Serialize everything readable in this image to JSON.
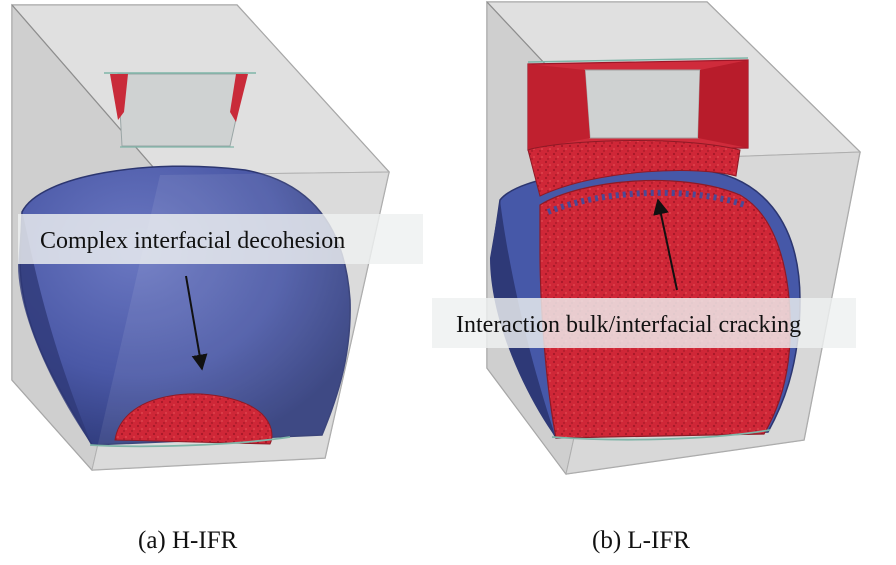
{
  "panels": [
    {
      "id": "a",
      "caption": "(a) H-IFR",
      "annotation": "Complex interfacial decohesion"
    },
    {
      "id": "b",
      "caption": "(b) L-IFR",
      "annotation": "Interaction bulk/interfacial cracking"
    }
  ],
  "colors": {
    "box": "#d9d9d9",
    "box_edge": "#9a9a9a",
    "inclusion": "#4a5aa8",
    "crack": "#d0293a",
    "label_bg": "#eef0f0"
  }
}
